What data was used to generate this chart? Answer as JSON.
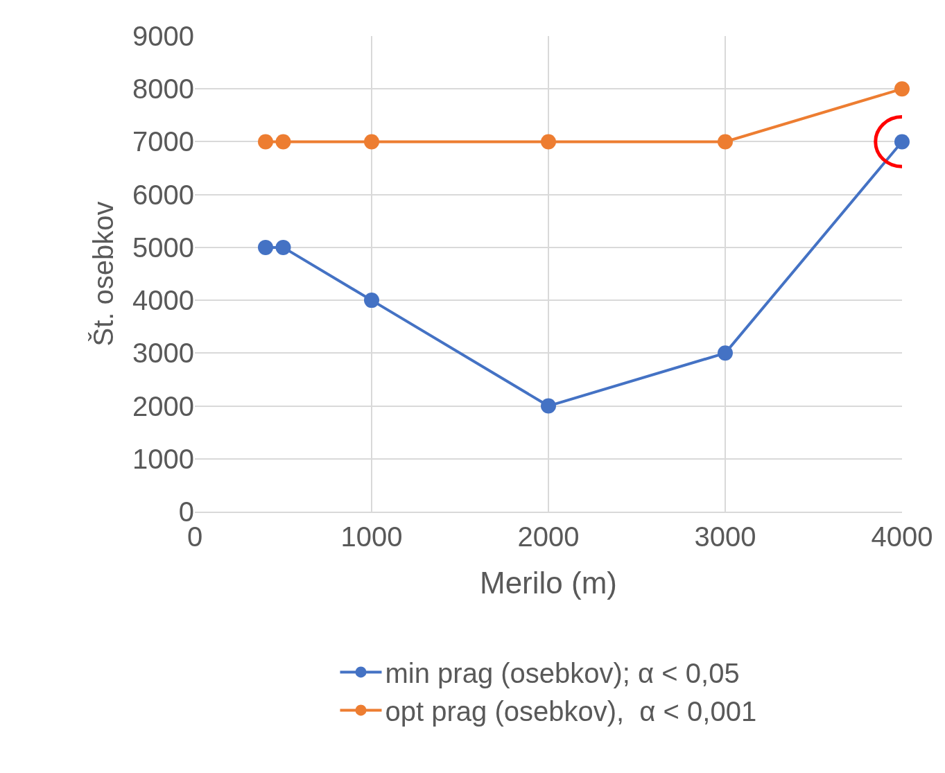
{
  "chart_data": {
    "type": "line",
    "xlabel": "Merilo (m)",
    "ylabel": "Št. osebkov",
    "x": [
      400,
      500,
      1000,
      2000,
      3000,
      4000
    ],
    "series": [
      {
        "name": "min prag (osebkov); α < 0,05",
        "color": "#4472c4",
        "values": [
          5000,
          5000,
          4000,
          2000,
          3000,
          7000
        ]
      },
      {
        "name": "opt prag (osebkov),  α < 0,001",
        "color": "#ed7d31",
        "values": [
          7000,
          7000,
          7000,
          7000,
          7000,
          8000
        ]
      }
    ],
    "xlim": [
      0,
      4000
    ],
    "xticks": [
      0,
      1000,
      2000,
      3000,
      4000
    ],
    "ylim": [
      0,
      9000
    ],
    "yticks": [
      0,
      1000,
      2000,
      3000,
      4000,
      5000,
      6000,
      7000,
      8000,
      9000
    ],
    "grid": true,
    "legend": "bottom",
    "marker": "circle",
    "line_style": "solid"
  }
}
